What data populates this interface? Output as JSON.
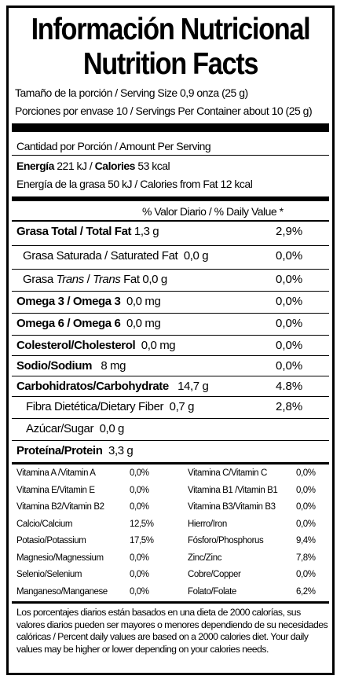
{
  "title_es": "Información Nutricional",
  "title_en": "Nutrition Facts",
  "serving_size": "Tamaño de la porción  / Serving Size 0,9 onza (25 g)",
  "servings_per_container": "Porciones por envase  10 / Servings Per Container about 10 (25 g)",
  "amount_per_serving": "Cantidad por Porción / Amount Per Serving",
  "energy": {
    "label": "Energía",
    "kj": "221 kJ /",
    "calories_label": "Calories",
    "kcal": "53 kcal",
    "fat_line": "Energía de la grasa 50 kJ / Calories from Fat 12 kcal"
  },
  "dv_header": "% Valor Diario / % Daily Value *",
  "nutrients": [
    {
      "name_bold": "Grasa Total / Total Fat",
      "name": " 1,3 g",
      "dv": "2,9%"
    },
    {
      "name_bold": "",
      "name": "Grasa Saturada / Saturated Fat  0,0 g",
      "dv": "0,0%"
    },
    {
      "name_bold": "",
      "name_pre": "Grasa ",
      "name_it1": "Trans",
      "name_mid": " / ",
      "name_it2": "Trans",
      "name_post": " Fat 0,0 g",
      "dv": "0,0%"
    },
    {
      "name_bold": "Omega 3 / Omega 3",
      "name": "  0,0 mg",
      "dv": "0,0%"
    },
    {
      "name_bold": "Omega 6 / Omega 6",
      "name": "  0,0 mg",
      "dv": "0,0%"
    },
    {
      "name_bold": "Colesterol/Cholesterol",
      "name": "  0,0 mg",
      "dv": "0,0%"
    },
    {
      "name_bold": "Sodio/Sodium",
      "name": "   8 mg",
      "dv": "0,0%"
    },
    {
      "name_bold": "Carbohidratos/Carbohydrate",
      "name": "   14,7 g",
      "dv": "4.8%"
    },
    {
      "name_bold": "",
      "name": "Fibra Dietética/Dietary Fiber  0,7 g",
      "dv": "2,8%"
    },
    {
      "name_bold": "",
      "name": "Azúcar/Sugar  0,0 g",
      "dv": ""
    },
    {
      "name_bold": "Proteína/Protein",
      "name": "  3,3 g",
      "dv": ""
    }
  ],
  "vitamins_left": [
    {
      "name": "Vitamina A /Vitamin A",
      "dv": "0,0%"
    },
    {
      "name": "Vitamina E/Vitamin E",
      "dv": "0,0%"
    },
    {
      "name": "Vitamina B2/Vitamin B2",
      "dv": "0,0%"
    },
    {
      "name": "Calcio/Calcium",
      "dv": "12,5%"
    },
    {
      "name": "Potasio/Potassium",
      "dv": "17,5%"
    },
    {
      "name": "Magnesio/Magnessium",
      "dv": "0,0%"
    },
    {
      "name": "Selenio/Selenium",
      "dv": "0,0%"
    },
    {
      "name": "Manganeso/Manganese",
      "dv": "0,0%"
    }
  ],
  "vitamins_right": [
    {
      "name": "Vitamina C/Vitamin C",
      "dv": "0,0%"
    },
    {
      "name": "Vitamina B1 /Vitamin B1",
      "dv": "0,0%"
    },
    {
      "name": "Vitamina B3/Vitamin B3",
      "dv": "0,0%"
    },
    {
      "name": "Hierro/Iron",
      "dv": "0,0%"
    },
    {
      "name": "Fósforo/Phosphorus",
      "dv": "9,4%"
    },
    {
      "name": "Zinc/Zinc",
      "dv": "7,8%"
    },
    {
      "name": "Cobre/Copper",
      "dv": "0,0%"
    },
    {
      "name": "Folato/Folate",
      "dv": "6,2%"
    }
  ],
  "footnote": "Los porcentajes diarios están basados en una dieta de 2000 calorías, sus valores diarios pueden ser mayores o menores dependiendo de su necesidades calóricas / Percent daily values are based on a 2000 calories diet. Your daily values may be higher or lower depending on your calories needs."
}
